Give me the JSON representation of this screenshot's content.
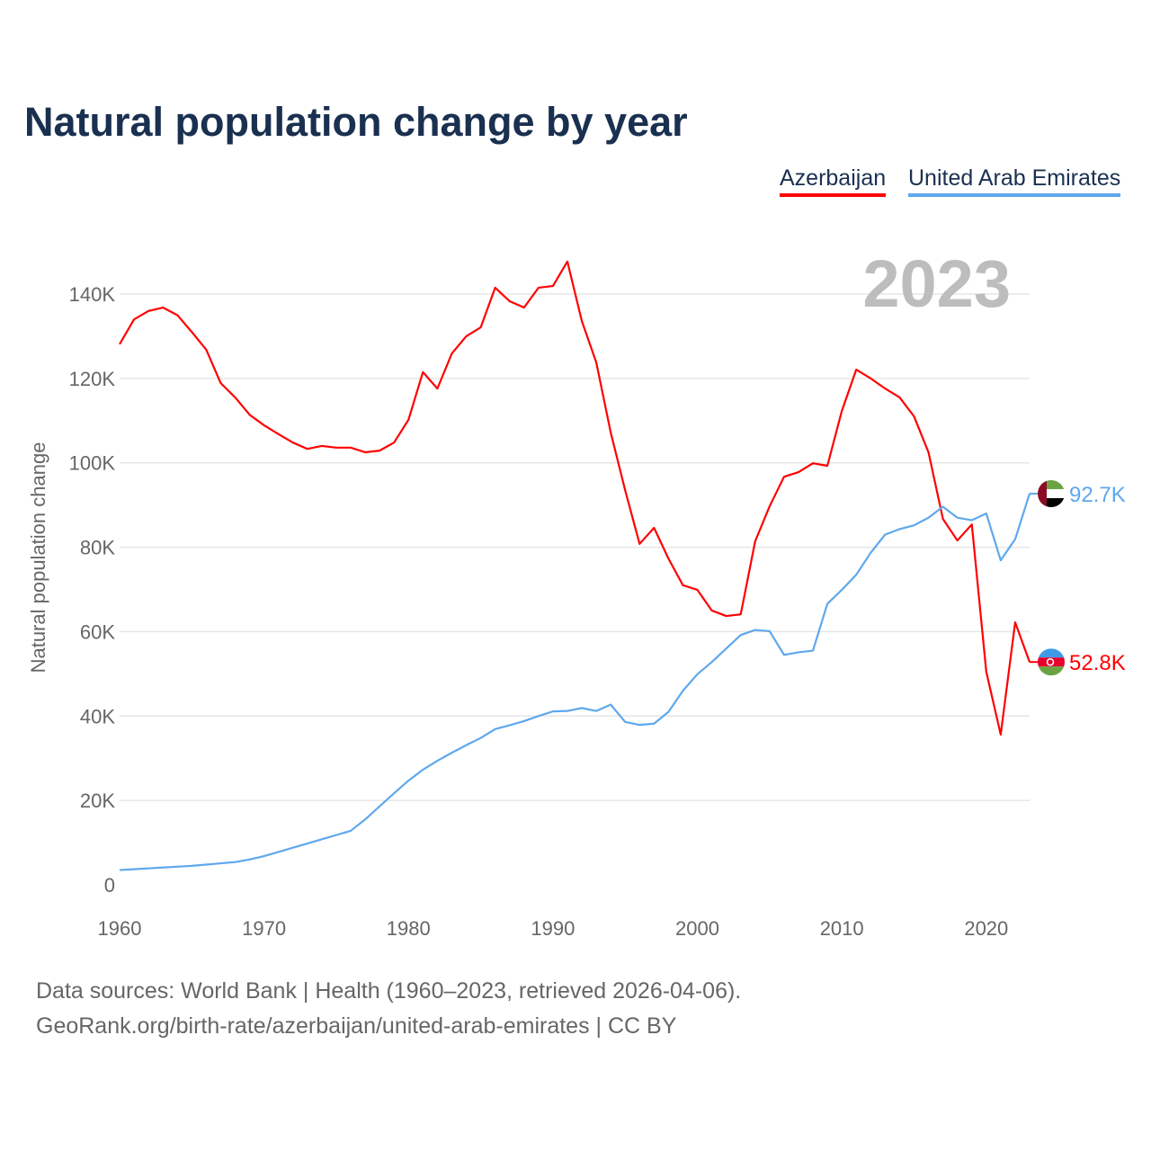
{
  "chart_data": {
    "type": "line",
    "title": "Natural population change by year",
    "ylabel": "Natural population change",
    "xlabel": "",
    "year_label": "2023",
    "xlim": [
      1960,
      2023
    ],
    "ylim": [
      0,
      140000
    ],
    "x_ticks": [
      1960,
      1970,
      1980,
      1990,
      2000,
      2010,
      2020
    ],
    "y_ticks": [
      {
        "v": 0,
        "label": "0"
      },
      {
        "v": 20000,
        "label": "20K"
      },
      {
        "v": 40000,
        "label": "40K"
      },
      {
        "v": 60000,
        "label": "60K"
      },
      {
        "v": 80000,
        "label": "80K"
      },
      {
        "v": 100000,
        "label": "100K"
      },
      {
        "v": 120000,
        "label": "120K"
      },
      {
        "v": 140000,
        "label": "140K"
      }
    ],
    "grid": true,
    "legend_position": "top-right",
    "series": [
      {
        "name": "Azerbaijan",
        "color": "#ff0000",
        "end_label": "52.8K",
        "flag": "azerbaijan-flag",
        "values": [
          128.1,
          134,
          136,
          136.8,
          135,
          131,
          126.8,
          118.9,
          115.5,
          111.4,
          108.9,
          106.8,
          104.8,
          103.3,
          104,
          103.6,
          103.6,
          102.5,
          102.9,
          104.8,
          110.2,
          121.5,
          117.6,
          125.9,
          130,
          132.1,
          141.5,
          138.3,
          136.8,
          141.5,
          141.9,
          147.7,
          133.6,
          123.8,
          107.2,
          93.5,
          80.8,
          84.6,
          77.3,
          71,
          69.9,
          65,
          63.7,
          64.1,
          81.4,
          89.7,
          96.7,
          97.8,
          99.9,
          99.3,
          112.3,
          122.1,
          120,
          117.6,
          115.5,
          111,
          102.5,
          86.7,
          81.6,
          85.4,
          50.5,
          35.6,
          62.2,
          52.8
        ]
      },
      {
        "name": "United Arab Emirates",
        "color": "#5ea8ed",
        "end_label": "92.7K",
        "flag": "uae-flag",
        "values": [
          3.5,
          3.7,
          3.9,
          4.1,
          4.3,
          4.5,
          4.8,
          5.1,
          5.4,
          6.0,
          6.8,
          7.8,
          8.8,
          9.8,
          10.8,
          11.8,
          12.8,
          15.5,
          18.6,
          21.7,
          24.7,
          27.3,
          29.4,
          31.3,
          33.1,
          34.8,
          36.9,
          37.8,
          38.8,
          40.0,
          41.1,
          41.2,
          41.9,
          41.2,
          42.7,
          38.6,
          37.9,
          38.2,
          41.0,
          46.0,
          49.9,
          52.8,
          56.0,
          59.2,
          60.4,
          60.1,
          54.5,
          55.1,
          55.5,
          66.6,
          69.9,
          73.5,
          78.7,
          83.0,
          84.3,
          85.2,
          87.0,
          89.6,
          87.0,
          86.4,
          88.0,
          76.9,
          81.9,
          92.7
        ]
      }
    ],
    "value_unit": "thousands"
  },
  "footer": {
    "line1": "Data sources: World Bank | Health (1960–2023, retrieved 2026-04-06).",
    "line2": "GeoRank.org/birth-rate/azerbaijan/united-arab-emirates | CC BY"
  }
}
